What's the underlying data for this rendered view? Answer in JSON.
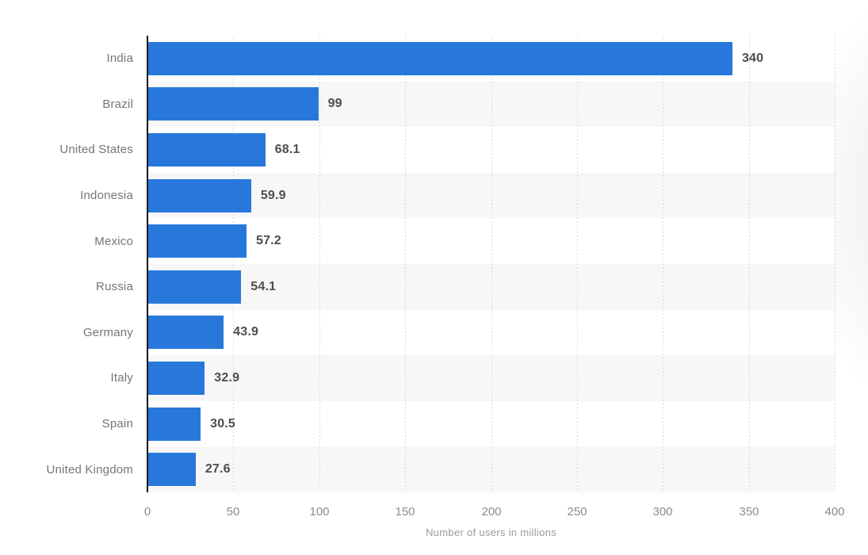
{
  "chart_data": {
    "type": "bar",
    "orientation": "horizontal",
    "categories": [
      "India",
      "Brazil",
      "United States",
      "Indonesia",
      "Mexico",
      "Russia",
      "Germany",
      "Italy",
      "Spain",
      "United Kingdom"
    ],
    "values": [
      340,
      99,
      68.1,
      59.9,
      57.2,
      54.1,
      43.9,
      32.9,
      30.5,
      27.6
    ],
    "value_labels": [
      "340",
      "99",
      "68.1",
      "59.9",
      "57.2",
      "54.1",
      "43.9",
      "32.9",
      "30.5",
      "27.6"
    ],
    "title": "",
    "xlabel": "Number of users in millions",
    "ylabel": "",
    "xlim": [
      0,
      400
    ],
    "xticks": [
      0,
      50,
      100,
      150,
      200,
      250,
      300,
      350,
      400
    ],
    "grid": "vertical-dotted",
    "legend": "none",
    "row_striping": "alternate-even-rows-white-odd-rows-gray",
    "colors": {
      "bar": "#2878dc",
      "stripe": "#f7f7f7",
      "axis_line": "#1a1a1a",
      "gridline": "#cccccc",
      "category_label": "#757575",
      "value_label": "#4d4d4d",
      "tick_label": "#8c8c8c",
      "axis_title": "#9b9b9b",
      "background": "#ffffff",
      "watermark": "#f4f4f4"
    }
  }
}
